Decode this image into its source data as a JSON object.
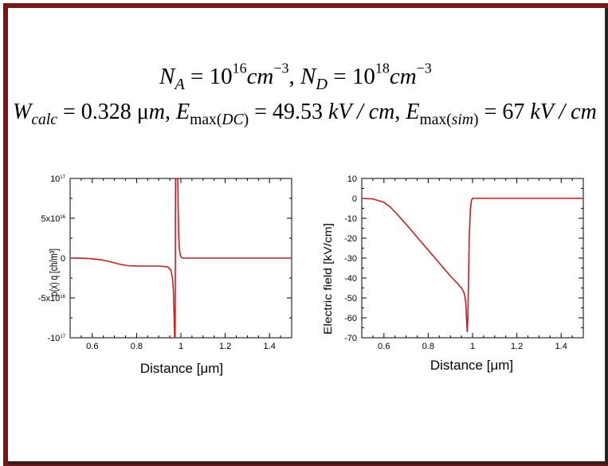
{
  "equations": {
    "line1": {
      "na_label": "N",
      "na_sub": "A",
      "na_eq": " = 10",
      "na_exp": "16",
      "na_unit": "cm",
      "na_unit_exp": "−3",
      "sep": ",  ",
      "nd_label": "N",
      "nd_sub": "D",
      "nd_eq": " = 10",
      "nd_exp": "18",
      "nd_unit": "cm",
      "nd_unit_exp": "−3"
    },
    "line2": {
      "w_label": "W",
      "w_sub": "calc",
      "w_value": " = 0.328 μ",
      "w_unit": "m",
      "sep1": ",  ",
      "edc_label": "E",
      "edc_sub_pre": "max(",
      "edc_sub_it": "DC",
      "edc_sub_post": ")",
      "edc_value": " = 49.53 ",
      "edc_unit": "kV / cm",
      "sep2": ",  ",
      "esim_label": "E",
      "esim_sub_pre": "max(",
      "esim_sub_it": "sim",
      "esim_sub_post": ")",
      "esim_value": " = 67 ",
      "esim_unit": "kV / cm"
    }
  },
  "colors": {
    "frame": "#7a1417",
    "curve": "#d11a1a",
    "axis": "#000000"
  },
  "chart_data": [
    {
      "type": "line",
      "xlabel": "Distance  [μm]",
      "ylabel": "ρ(x) q [ch/m³]",
      "xlim": [
        0.5,
        1.5
      ],
      "ylim": [
        -1e+17,
        1e+17
      ],
      "x_ticks": [
        {
          "v": 0.6,
          "label": "0.6"
        },
        {
          "v": 0.8,
          "label": "0.8"
        },
        {
          "v": 1.0,
          "label": "1"
        },
        {
          "v": 1.2,
          "label": "1.2"
        },
        {
          "v": 1.4,
          "label": "1.4"
        }
      ],
      "y_ticks": [
        {
          "v": 1e+17,
          "label": "10",
          "exp": "17"
        },
        {
          "v": 5e+16,
          "label": "5x10",
          "exp": "16"
        },
        {
          "v": 0,
          "label": "0",
          "exp": ""
        },
        {
          "v": -5e+16,
          "label": "-5x10",
          "exp": "16"
        },
        {
          "v": -1e+17,
          "label": "-10",
          "exp": "17"
        }
      ],
      "series": [
        {
          "x": [
            0.5,
            0.55,
            0.6,
            0.64,
            0.68,
            0.72,
            0.76,
            0.8,
            0.85,
            0.9,
            0.94,
            0.955,
            0.962,
            0.966,
            0.969,
            0.972,
            0.974,
            0.975,
            0.976,
            0.978,
            0.982,
            0.986,
            0.988,
            0.99,
            0.993,
            0.997,
            1.002,
            1.01,
            1.05,
            1.2,
            1.5
          ],
          "y": [
            0,
            -100000000000000.0,
            -800000000000000.0,
            -2200000000000000.0,
            -4500000000000000.0,
            -7500000000000000.0,
            -9500000000000000.0,
            -1e+16,
            -1e+16,
            -1e+16,
            -1.1e+16,
            -1.5e+16,
            -2.5e+16,
            -4e+16,
            -7e+16,
            -1e+17,
            -1e+17,
            0,
            1e+17,
            1e+17,
            1e+17,
            1e+17,
            6e+16,
            3e+16,
            1.2e+16,
            4000000000000000.0,
            1000000000000000.0,
            0,
            0,
            0,
            0
          ]
        }
      ]
    },
    {
      "type": "line",
      "xlabel": "Distance  [μm]",
      "ylabel": "Electric field [kV/cm]",
      "xlim": [
        0.5,
        1.5
      ],
      "ylim": [
        -70,
        10
      ],
      "x_ticks": [
        {
          "v": 0.6,
          "label": "0.6"
        },
        {
          "v": 0.8,
          "label": "0.8"
        },
        {
          "v": 1.0,
          "label": "1"
        },
        {
          "v": 1.2,
          "label": "1.2"
        },
        {
          "v": 1.4,
          "label": "1.4"
        }
      ],
      "y_ticks": [
        {
          "v": 10,
          "label": "10"
        },
        {
          "v": 0,
          "label": "0"
        },
        {
          "v": -10,
          "label": "-10"
        },
        {
          "v": -20,
          "label": "-20"
        },
        {
          "v": -30,
          "label": "-30"
        },
        {
          "v": -40,
          "label": "-40"
        },
        {
          "v": -50,
          "label": "-50"
        },
        {
          "v": -60,
          "label": "-60"
        },
        {
          "v": -70,
          "label": "-70"
        }
      ],
      "series": [
        {
          "x": [
            0.5,
            0.55,
            0.6,
            0.63,
            0.66,
            0.7,
            0.75,
            0.8,
            0.85,
            0.9,
            0.93,
            0.95,
            0.96,
            0.965,
            0.97,
            0.973,
            0.976,
            0.979,
            0.982,
            0.985,
            0.99,
            0.995,
            1.0,
            1.2,
            1.5
          ],
          "y": [
            0,
            -0.3,
            -2,
            -4.5,
            -8,
            -13,
            -19.5,
            -26,
            -32.5,
            -39,
            -42.5,
            -45,
            -47,
            -49,
            -53,
            -61,
            -67,
            -60,
            -40,
            -20,
            -6,
            -1,
            0,
            0,
            0
          ]
        }
      ]
    }
  ]
}
